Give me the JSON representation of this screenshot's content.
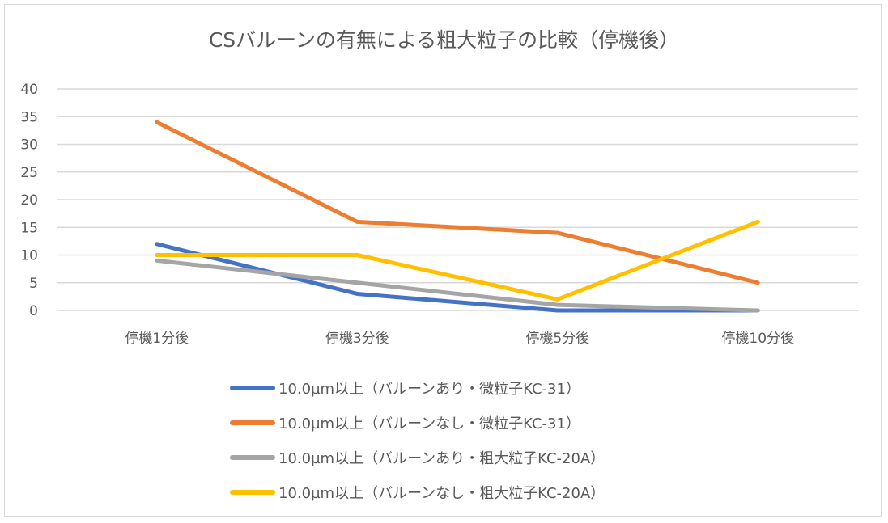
{
  "chart_data": {
    "type": "line",
    "title": "CSバルーンの有無による粗大粒子の比較（停機後）",
    "xlabel": "",
    "ylabel": "",
    "categories": [
      "停機1分後",
      "停機3分後",
      "停機5分後",
      "停機10分後"
    ],
    "ylim": [
      0,
      40
    ],
    "yticks": [
      0,
      5,
      10,
      15,
      20,
      25,
      30,
      35,
      40
    ],
    "grid": true,
    "legend_position": "bottom",
    "series": [
      {
        "name": "10.0µm以上（バルーンあり・微粒子KC-31）",
        "color": "#4472C4",
        "values": [
          12,
          3,
          0,
          0
        ]
      },
      {
        "name": "10.0µm以上（バルーンなし・微粒子KC-31）",
        "color": "#ED7D31",
        "values": [
          34,
          16,
          14,
          5
        ]
      },
      {
        "name": "10.0µm以上（バルーンあり・粗大粒子KC-20A）",
        "color": "#A5A5A5",
        "values": [
          9,
          5,
          1,
          0
        ]
      },
      {
        "name": "10.0µm以上（バルーンなし・粗大粒子KC-20A）",
        "color": "#FFC000",
        "values": [
          10,
          10,
          2,
          16
        ]
      }
    ]
  }
}
